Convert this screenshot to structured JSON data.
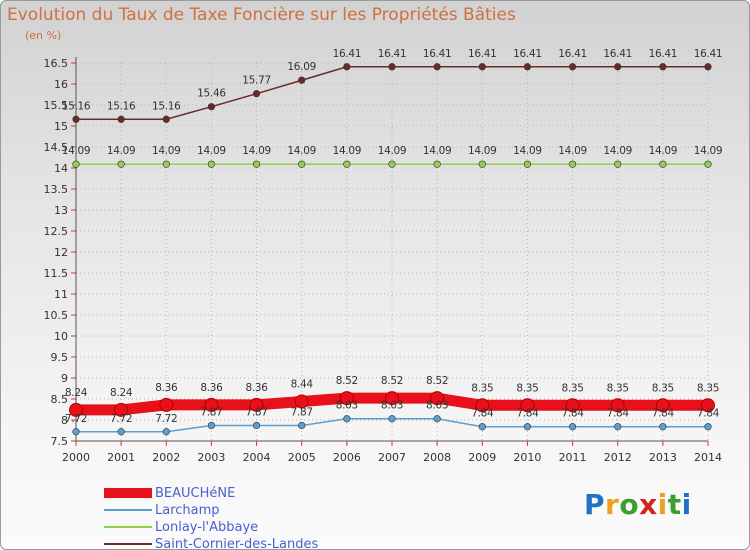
{
  "title": "Evolution du Taux de Taxe Foncière sur les Propriétés Bâties",
  "unit_label": "(en %)",
  "logo": {
    "text": "Proxiti"
  },
  "colors": {
    "title": "#d06f40",
    "legend_text": "#4a5fd0",
    "grid": "#b8b8b8",
    "axis": "#555555"
  },
  "chart_data": {
    "type": "line",
    "title": "Evolution du Taux de Taxe Foncière sur les Propriétés Bâties",
    "ylabel": "(en %)",
    "xlabel": "",
    "x": [
      "2000",
      "2001",
      "2002",
      "2003",
      "2004",
      "2005",
      "2006",
      "2007",
      "2008",
      "2009",
      "2010",
      "2011",
      "2012",
      "2013",
      "2014"
    ],
    "ylim": [
      7.5,
      16.5
    ],
    "yticks": [
      "7.5",
      "8",
      "8.5",
      "9",
      "9.5",
      "10",
      "10.5",
      "11",
      "11.5",
      "12",
      "12.5",
      "13",
      "13.5",
      "14",
      "14.5",
      "15",
      "15.5",
      "16",
      "16.5"
    ],
    "grid": true,
    "legend_position": "bottom-left",
    "series": [
      {
        "name": "BEAUCHéNE",
        "color": "#e8101a",
        "values": [
          8.24,
          8.24,
          8.36,
          8.36,
          8.36,
          8.44,
          8.52,
          8.52,
          8.52,
          8.35,
          8.35,
          8.35,
          8.35,
          8.35,
          8.35
        ],
        "labels": [
          "8.24",
          "8.24",
          "8.36",
          "8.36",
          "8.36",
          "8.44",
          "8.52",
          "8.52",
          "8.52",
          "8.35",
          "8.35",
          "8.35",
          "8.35",
          "8.35",
          "8.35"
        ]
      },
      {
        "name": "Larchamp",
        "color": "#5b9fd1",
        "values": [
          7.72,
          7.72,
          7.72,
          7.87,
          7.87,
          7.87,
          8.03,
          8.03,
          8.03,
          7.84,
          7.84,
          7.84,
          7.84,
          7.84,
          7.84
        ],
        "labels": [
          "7.72",
          "7.72",
          "7.72",
          "7.87",
          "7.87",
          "7.87",
          "8.03",
          "8.03",
          "8.03",
          "7.84",
          "7.84",
          "7.84",
          "7.84",
          "7.84",
          "7.84"
        ]
      },
      {
        "name": "Lonlay-l'Abbaye",
        "color": "#8fd14f",
        "values": [
          14.09,
          14.09,
          14.09,
          14.09,
          14.09,
          14.09,
          14.09,
          14.09,
          14.09,
          14.09,
          14.09,
          14.09,
          14.09,
          14.09,
          14.09
        ],
        "labels": [
          "14.09",
          "14.09",
          "14.09",
          "14.09",
          "14.09",
          "14.09",
          "14.09",
          "14.09",
          "14.09",
          "14.09",
          "14.09",
          "14.09",
          "14.09",
          "14.09",
          "14.09"
        ]
      },
      {
        "name": "Saint-Cornier-des-Landes",
        "color": "#6b2a2a",
        "values": [
          15.16,
          15.16,
          15.16,
          15.46,
          15.77,
          16.09,
          16.41,
          16.41,
          16.41,
          16.41,
          16.41,
          16.41,
          16.41,
          16.41,
          16.41
        ],
        "labels": [
          "15.16",
          "15.16",
          "15.16",
          "15.46",
          "15.77",
          "16.09",
          "16.41",
          "16.41",
          "16.41",
          "16.41",
          "16.41",
          "16.41",
          "16.41",
          "16.41",
          "16.41"
        ]
      }
    ]
  }
}
